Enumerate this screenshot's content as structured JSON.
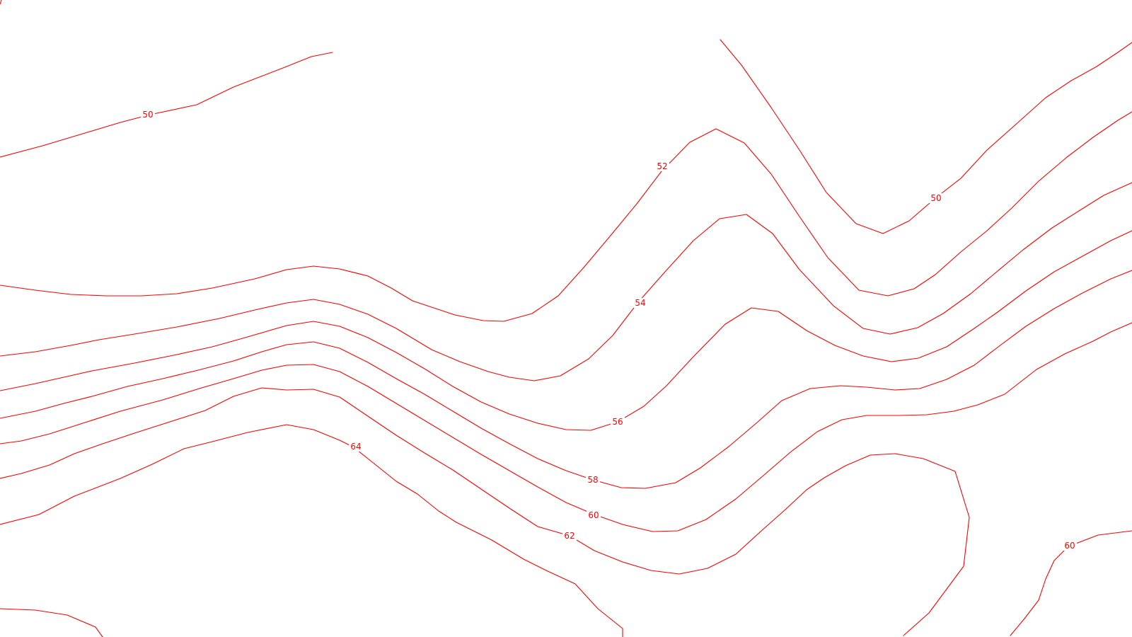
{
  "map": {
    "line_color": "#ff0000",
    "background_color": "#ffffff",
    "contours": [
      {
        "id": "c50-a",
        "value": 50,
        "label": "50"
      },
      {
        "id": "c50-b",
        "value": 50,
        "label": "50"
      },
      {
        "id": "c52",
        "value": 52,
        "label": "52"
      },
      {
        "id": "c54",
        "value": 54,
        "label": "54"
      },
      {
        "id": "c56",
        "value": 56,
        "label": "56"
      },
      {
        "id": "c58",
        "value": 58,
        "label": "58"
      },
      {
        "id": "c60-a",
        "value": 60,
        "label": "60"
      },
      {
        "id": "c60-b",
        "value": 60,
        "label": "60"
      },
      {
        "id": "c62",
        "value": 62,
        "label": "62"
      },
      {
        "id": "c64",
        "value": 64,
        "label": "64"
      },
      {
        "id": "c-loop",
        "value": null,
        "label": ""
      },
      {
        "id": "c-corner",
        "value": null,
        "label": ""
      }
    ]
  }
}
